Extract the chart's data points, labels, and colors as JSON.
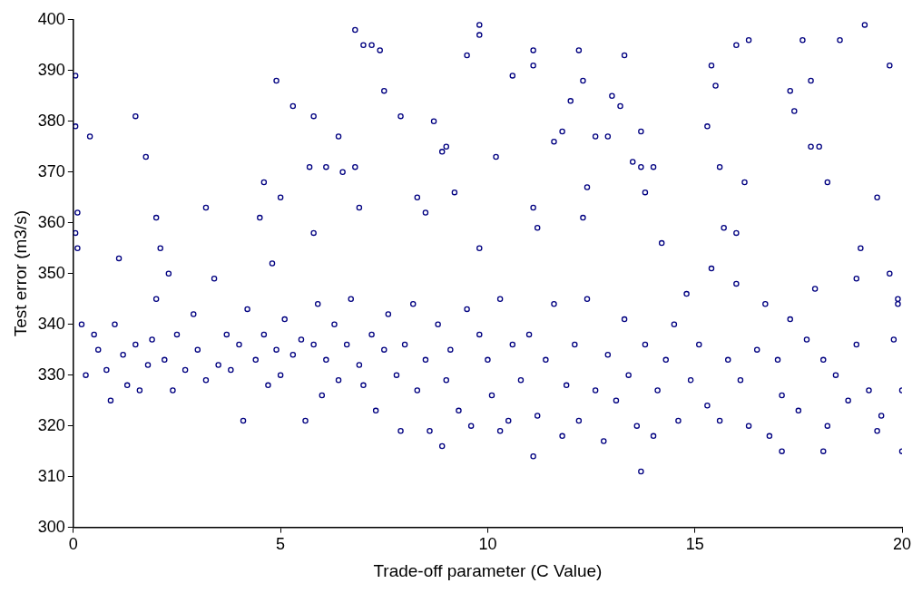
{
  "chart_data": {
    "type": "scatter",
    "xlabel": "Trade-off parameter (C Value)",
    "ylabel": "Test error (m3/s)",
    "xlim": [
      0,
      20
    ],
    "xticks": [
      0,
      5,
      10,
      15,
      20
    ],
    "ylim": [
      300,
      400
    ],
    "yticks": [
      300,
      310,
      320,
      330,
      340,
      350,
      360,
      370,
      380,
      390,
      400
    ],
    "grid": false,
    "legend": false,
    "marker": "circle",
    "series": [
      {
        "color": "#000080",
        "x": [
          0.05,
          0.05,
          0.1,
          0.05,
          0.1,
          0.4,
          1.5,
          1.75,
          2,
          2.1,
          3.2,
          4.5,
          4.6,
          4.9,
          5,
          5.3,
          5.8,
          5.7,
          6.1,
          6.4,
          6.5,
          6.8,
          6.8,
          7,
          7.2,
          7.4,
          7.5,
          7.9,
          8.7,
          8.9,
          9,
          9.5,
          9.8,
          9.8,
          9.8,
          10.2,
          10.6,
          11.1,
          11.1,
          11.1,
          11.6,
          11.8,
          12,
          12.2,
          12.3,
          12.4,
          12.6,
          12.9,
          13,
          13.2,
          13.3,
          13.7,
          13.8,
          14,
          15.3,
          15.4,
          15.5,
          15.6,
          16,
          16.3,
          16.2,
          17.3,
          17.4,
          17.6,
          17.8,
          17.8,
          18,
          18.2,
          18.5,
          19.1,
          19.4,
          19.7,
          19.9,
          20,
          20,
          19,
          18.9,
          8.3,
          8.5,
          9.2,
          6.9,
          5.8,
          2.3,
          1.1,
          14.2,
          16,
          15.7,
          11.2,
          4.8,
          12.3,
          13.5,
          13.7,
          13.7,
          11.1,
          17.1,
          18.1,
          8.9,
          19.4,
          10.3,
          0.2,
          0.3,
          0.5,
          0.6,
          0.8,
          0.9,
          1,
          1.2,
          1.3,
          1.5,
          1.6,
          1.8,
          1.9,
          2,
          2.2,
          2.4,
          2.5,
          2.7,
          2.9,
          3,
          3.2,
          3.4,
          3.5,
          3.7,
          3.8,
          4,
          4.1,
          4.2,
          4.4,
          4.6,
          4.7,
          4.9,
          5,
          5.1,
          5.3,
          5.5,
          5.6,
          5.8,
          5.9,
          6,
          6.1,
          6.3,
          6.4,
          6.6,
          6.7,
          6.9,
          7,
          7.2,
          7.3,
          7.5,
          7.6,
          7.8,
          7.9,
          8,
          8.2,
          8.3,
          8.5,
          8.6,
          8.8,
          9,
          9.1,
          9.3,
          9.5,
          9.6,
          9.8,
          10,
          10.1,
          10.3,
          10.5,
          10.6,
          10.8,
          11,
          11.2,
          11.4,
          11.6,
          11.8,
          11.9,
          12.1,
          12.2,
          12.4,
          12.6,
          12.8,
          12.9,
          13.1,
          13.3,
          13.4,
          13.6,
          13.8,
          14,
          14.1,
          14.3,
          14.5,
          14.6,
          14.8,
          14.9,
          15.1,
          15.3,
          15.4,
          15.6,
          15.8,
          16,
          16.1,
          16.3,
          16.5,
          16.7,
          16.8,
          17,
          17.1,
          17.3,
          17.5,
          17.7,
          17.9,
          18.1,
          18.2,
          18.4,
          18.7,
          18.9,
          19.2,
          19.5,
          19.7,
          19.8,
          19.9
        ],
        "values": [
          389,
          379,
          362,
          358,
          355,
          377,
          381,
          373,
          361,
          355,
          363,
          361,
          368,
          388,
          365,
          383,
          381,
          371,
          371,
          377,
          370,
          371,
          398,
          395,
          395,
          394,
          386,
          381,
          380,
          374,
          375,
          393,
          399,
          397,
          355,
          373,
          389,
          394,
          391,
          363,
          376,
          378,
          384,
          394,
          388,
          367,
          377,
          377,
          385,
          383,
          393,
          378,
          366,
          371,
          379,
          391,
          387,
          371,
          395,
          396,
          368,
          386,
          382,
          396,
          388,
          375,
          375,
          368,
          396,
          399,
          365,
          391,
          344,
          327,
          315,
          355,
          349,
          365,
          362,
          366,
          363,
          358,
          350,
          353,
          356,
          358,
          359,
          359,
          352,
          361,
          372,
          371,
          311,
          314,
          315,
          315,
          316,
          319,
          319,
          340,
          330,
          338,
          335,
          331,
          325,
          340,
          334,
          328,
          336,
          327,
          332,
          337,
          345,
          333,
          327,
          338,
          331,
          342,
          335,
          329,
          349,
          332,
          338,
          331,
          336,
          321,
          343,
          333,
          338,
          328,
          335,
          330,
          341,
          334,
          337,
          321,
          336,
          344,
          326,
          333,
          340,
          329,
          336,
          345,
          332,
          328,
          338,
          323,
          335,
          342,
          330,
          319,
          336,
          344,
          327,
          333,
          319,
          340,
          329,
          335,
          323,
          343,
          320,
          338,
          333,
          326,
          345,
          321,
          336,
          329,
          338,
          322,
          333,
          344,
          318,
          328,
          336,
          321,
          345,
          327,
          317,
          334,
          325,
          341,
          330,
          320,
          336,
          318,
          327,
          333,
          340,
          321,
          346,
          329,
          336,
          324,
          351,
          321,
          333,
          348,
          329,
          320,
          335,
          344,
          318,
          333,
          326,
          341,
          323,
          337,
          347,
          333,
          320,
          330,
          325,
          336,
          327,
          322,
          350,
          337,
          345
        ]
      }
    ]
  }
}
